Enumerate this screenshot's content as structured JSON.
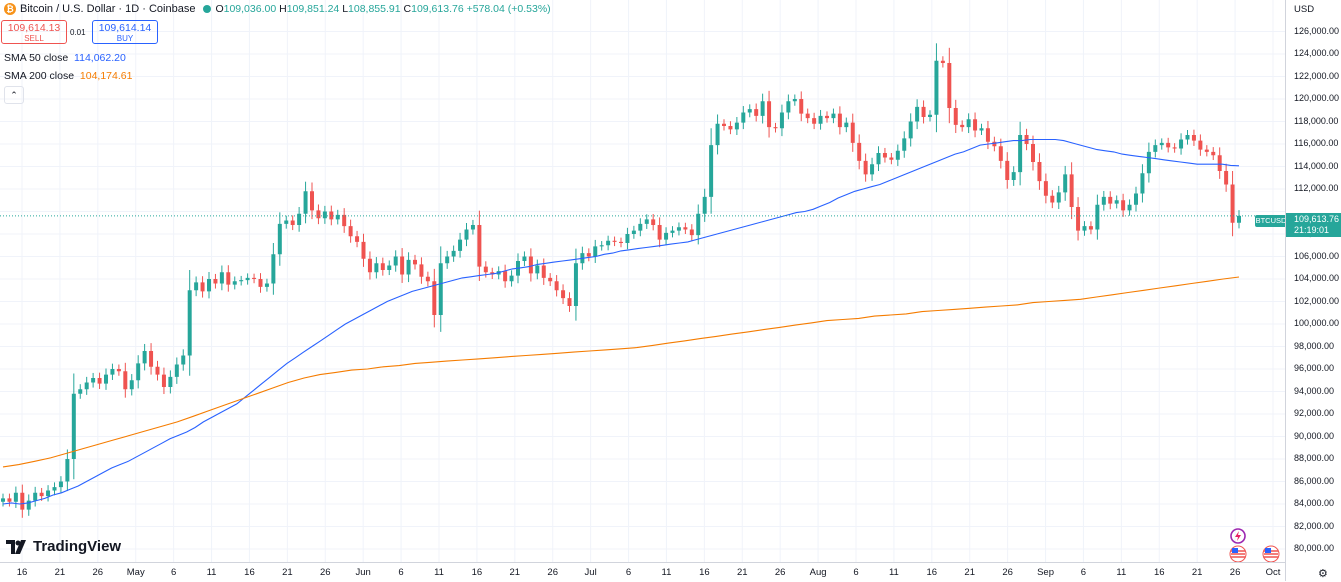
{
  "header": {
    "symbol": "Bitcoin / U.S. Dollar · 1D · Coinbase",
    "open_key": "O",
    "open": "109,036.00",
    "high_key": "H",
    "high": "109,851.24",
    "low_key": "L",
    "low": "108,855.91",
    "close_key": "C",
    "close": "109,613.76",
    "change": "+578.04 (+0.53%)"
  },
  "trade": {
    "sell_price": "109,614.13",
    "sell_label": "SELL",
    "spread": "0.01",
    "buy_price": "109,614.14",
    "buy_label": "BUY"
  },
  "indicators": [
    {
      "label": "SMA 50 close",
      "value": "114,062.20",
      "color": "#2962ff"
    },
    {
      "label": "SMA 200 close",
      "value": "104,174.61",
      "color": "#f57c00"
    }
  ],
  "price_axis": {
    "currency": "USD",
    "labels": [
      "126,000.00",
      "124,000.00",
      "122,000.00",
      "120,000.00",
      "118,000.00",
      "116,000.00",
      "114,000.00",
      "112,000.00",
      "108,000.00",
      "106,000.00",
      "104,000.00",
      "102,000.00",
      "100,000.00",
      "98,000.00",
      "96,000.00",
      "94,000.00",
      "92,000.00",
      "90,000.00",
      "88,000.00",
      "86,000.00",
      "84,000.00",
      "82,000.00",
      "80,000.00"
    ],
    "current_price": "109,613.76",
    "countdown": "21:19:01",
    "symbol_tag": "BTCUSD"
  },
  "time_axis": {
    "labels": [
      "16",
      "21",
      "26",
      "May",
      "6",
      "11",
      "16",
      "21",
      "26",
      "Jun",
      "6",
      "11",
      "16",
      "21",
      "26",
      "Jul",
      "6",
      "11",
      "16",
      "21",
      "26",
      "Aug",
      "6",
      "11",
      "16",
      "21",
      "26",
      "Sep",
      "6",
      "11",
      "16",
      "21",
      "26",
      "Oct"
    ]
  },
  "branding": {
    "logo_text": "TradingView"
  },
  "colors": {
    "up": "#26a69a",
    "down": "#ef5350",
    "sma50": "#2962ff",
    "sma200": "#f57c00"
  },
  "chart_data": {
    "type": "candlestick",
    "title": "Bitcoin / U.S. Dollar · 1D · Coinbase",
    "ylim": [
      79000,
      127500
    ],
    "price_ticks": [
      80000,
      82000,
      84000,
      86000,
      88000,
      90000,
      92000,
      94000,
      96000,
      98000,
      100000,
      102000,
      104000,
      106000,
      108000,
      110000,
      112000,
      114000,
      116000,
      118000,
      120000,
      122000,
      124000,
      126000
    ],
    "last_price": 109613.76,
    "series": [
      {
        "name": "BTCUSD",
        "close": [
          84500,
          84200,
          85000,
          83500,
          84300,
          85000,
          84700,
          85200,
          85500,
          86000,
          88000,
          93800,
          94200,
          94800,
          95200,
          94700,
          95500,
          96000,
          95800,
          94200,
          95000,
          96500,
          97600,
          96200,
          95500,
          94400,
          95300,
          96400,
          97200,
          103000,
          103700,
          102900,
          104000,
          103600,
          104600,
          103500,
          103800,
          103900,
          104100,
          104000,
          103300,
          103600,
          106200,
          108900,
          109200,
          108800,
          109800,
          111800,
          110100,
          109400,
          110000,
          109300,
          109700,
          108700,
          107800,
          107300,
          105800,
          104600,
          105400,
          104800,
          105200,
          106000,
          104400,
          105700,
          105300,
          104200,
          103800,
          100800,
          105400,
          106000,
          106500,
          107500,
          108400,
          108800,
          105100,
          104600,
          104400,
          104700,
          103800,
          104300,
          105600,
          106000,
          104500,
          105200,
          104100,
          103800,
          103000,
          102300,
          101600,
          105400,
          106300,
          106000,
          106900,
          107000,
          107400,
          107300,
          107200,
          108000,
          108300,
          108900,
          109300,
          108800,
          107500,
          108100,
          108300,
          108600,
          108400,
          107900,
          109800,
          111300,
          115900,
          117800,
          117600,
          117300,
          117900,
          118800,
          119100,
          118500,
          119800,
          117500,
          117400,
          118800,
          119800,
          120000,
          118700,
          118300,
          117800,
          118500,
          118300,
          118700,
          117500,
          117900,
          116100,
          114500,
          113300,
          114200,
          115200,
          114800,
          114600,
          115400,
          116500,
          118000,
          119300,
          118400,
          118600,
          123400,
          123200,
          119200,
          117700,
          117500,
          118200,
          117200,
          117400,
          116200,
          115800,
          114500,
          112800,
          113500,
          116800,
          116000,
          114400,
          112700,
          111400,
          110800,
          111700,
          113300,
          110400,
          108300,
          108700,
          108400,
          110600,
          111300,
          110700,
          111000,
          110100,
          110600,
          111600,
          113400,
          115300,
          115900,
          116100,
          115700,
          115600,
          116400,
          116800,
          116300,
          115500,
          115300,
          115000,
          113600,
          112400,
          109000,
          109613.76
        ]
      },
      {
        "name": "SMA 50 close",
        "values": [
          84000,
          84100,
          84000,
          84100,
          84300,
          84500,
          84800,
          85000,
          85300,
          85600,
          86000,
          86400,
          86800,
          87200,
          87500,
          87800,
          88200,
          88600,
          89000,
          89400,
          89800,
          90100,
          90400,
          90800,
          91300,
          91700,
          92100,
          92500,
          92900,
          93500,
          94100,
          94700,
          95300,
          95900,
          96500,
          97000,
          97500,
          98000,
          98500,
          99000,
          99500,
          100000,
          100400,
          100800,
          101200,
          101600,
          102000,
          102300,
          102600,
          102900,
          103100,
          103300,
          103500,
          103700,
          103900,
          104100,
          104200,
          104300,
          104400,
          104500,
          104700,
          104900,
          105000,
          105100,
          105300,
          105400,
          105500,
          105600,
          105700,
          105800,
          105900,
          106000,
          106200,
          106300,
          106500,
          106600,
          106700,
          106800,
          106900,
          107000,
          107100,
          107200,
          107300,
          107500,
          107700,
          107900,
          108100,
          108300,
          108500,
          108700,
          108900,
          109100,
          109300,
          109500,
          109700,
          109900,
          110000,
          110200,
          110500,
          110800,
          111200,
          111500,
          111800,
          112000,
          112200,
          112400,
          112700,
          113000,
          113300,
          113600,
          113900,
          114200,
          114500,
          114800,
          115100,
          115300,
          115600,
          115900,
          116000,
          116100,
          116200,
          116300,
          116300,
          116400,
          116400,
          116400,
          116400,
          116300,
          116100,
          115900,
          115700,
          115500,
          115400,
          115300,
          115100,
          115000,
          114900,
          114800,
          114700,
          114600,
          114500,
          114400,
          114300,
          114200,
          114200,
          114200,
          114200,
          114100,
          114062.2
        ]
      },
      {
        "name": "SMA 200 close",
        "values": [
          87300,
          87500,
          87800,
          88100,
          88500,
          88900,
          89300,
          89700,
          90100,
          90500,
          90900,
          91300,
          91800,
          92300,
          92800,
          93300,
          93800,
          94300,
          94800,
          95200,
          95500,
          95700,
          95900,
          96000,
          96200,
          96300,
          96500,
          96600,
          96700,
          96800,
          96900,
          97000,
          97100,
          97200,
          97300,
          97400,
          97500,
          97600,
          97700,
          97800,
          97900,
          98100,
          98300,
          98500,
          98700,
          98900,
          99100,
          99300,
          99500,
          99700,
          99900,
          100100,
          100300,
          100400,
          100500,
          100700,
          100800,
          100900,
          101100,
          101200,
          101300,
          101400,
          101500,
          101600,
          101700,
          101900,
          102000,
          102100,
          102200,
          102400,
          102600,
          102800,
          103000,
          103200,
          103400,
          103600,
          103800,
          104000,
          104174.61
        ]
      }
    ]
  }
}
